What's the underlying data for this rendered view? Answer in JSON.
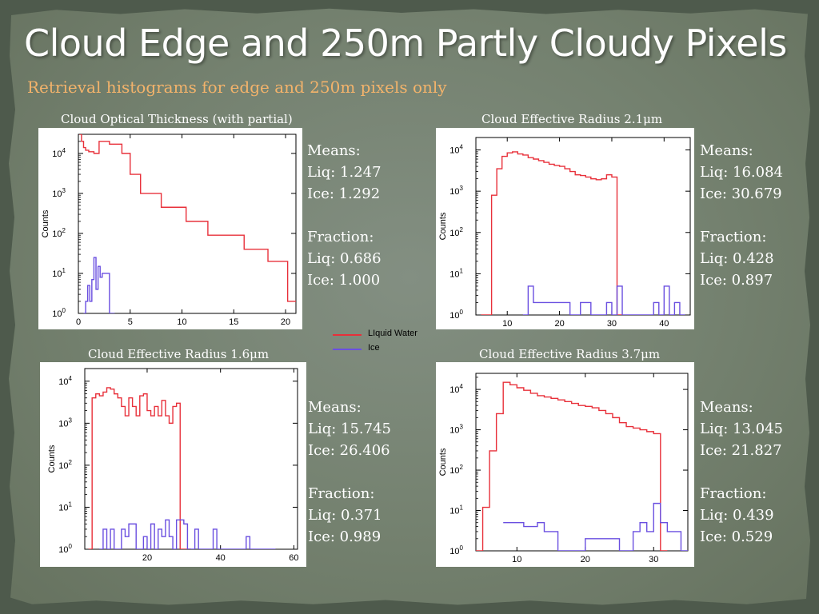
{
  "slide": {
    "title": "Cloud Edge and 250m Partly Cloudy Pixels",
    "subtitle": "Retrieval histograms for edge and 250m pixels only",
    "colors": {
      "liquid": "#e8303a",
      "ice": "#6a4fe0",
      "subtitle": "#f3b36b"
    }
  },
  "legend": {
    "liquid_label": "LIquid Water",
    "ice_label": "Ice"
  },
  "stats": {
    "means_label": "Means:",
    "fraction_label": "Fraction:",
    "cot": {
      "liq_mean": "Liq: 1.247",
      "ice_mean": "Ice: 1.292",
      "liq_frac": "Liq: 0.686",
      "ice_frac": "Ice: 1.000"
    },
    "r21": {
      "liq_mean": "Liq: 16.084",
      "ice_mean": "Ice: 30.679",
      "liq_frac": "Liq: 0.428",
      "ice_frac": "Ice: 0.897"
    },
    "r16": {
      "liq_mean": "Liq: 15.745",
      "ice_mean": "Ice: 26.406",
      "liq_frac": "Liq: 0.371",
      "ice_frac": "Ice: 0.989"
    },
    "r37": {
      "liq_mean": "Liq: 13.045",
      "ice_mean": "Ice: 21.827",
      "liq_frac": "Liq: 0.439",
      "ice_frac": "Ice: 0.529"
    }
  },
  "chart_data": [
    {
      "id": "cot",
      "type": "step-histogram",
      "title": "Cloud Optical Thickness (with partial)",
      "ylabel": "Counts",
      "xlim": [
        0,
        21
      ],
      "ylim": [
        1,
        30000
      ],
      "yscale": "log",
      "xticks": [
        0,
        5,
        10,
        15,
        20
      ],
      "yticks": [
        {
          "v": 1,
          "t": "10^0"
        },
        {
          "v": 10,
          "t": "10^1"
        },
        {
          "v": 100,
          "t": "10^2"
        },
        {
          "v": 1000,
          "t": "10^3"
        },
        {
          "v": 10000,
          "t": "10^4"
        }
      ],
      "series": [
        {
          "name": "LIquid Water",
          "color": "#e8303a",
          "x": [
            0.1,
            0.3,
            0.5,
            0.7,
            1.0,
            1.5,
            2.0,
            3.0,
            4.2,
            5.0,
            6.0,
            8.0,
            10.4,
            12.5,
            16.0,
            18.3,
            20.2,
            21.0
          ],
          "y": [
            30000,
            20000,
            14000,
            12000,
            11000,
            10000,
            20000,
            17000,
            10000,
            3000,
            1000,
            450,
            200,
            90,
            40,
            20,
            2,
            2
          ]
        },
        {
          "name": "Ice",
          "color": "#6a4fe0",
          "x": [
            0.5,
            0.7,
            0.9,
            1.1,
            1.3,
            1.5,
            1.7,
            1.9,
            2.1,
            2.3,
            2.5,
            3.0
          ],
          "y": [
            1,
            2,
            5,
            2,
            7,
            25,
            4,
            15,
            8,
            10,
            10,
            1
          ]
        }
      ]
    },
    {
      "id": "r21",
      "type": "step-histogram",
      "title": "Cloud Effective Radius 2.1μm",
      "ylabel": "Counts",
      "xlim": [
        4,
        45
      ],
      "ylim": [
        1,
        20000
      ],
      "yscale": "log",
      "xticks": [
        10,
        20,
        30,
        40
      ],
      "yticks": [
        {
          "v": 1,
          "t": "10^0"
        },
        {
          "v": 10,
          "t": "10^1"
        },
        {
          "v": 100,
          "t": "10^2"
        },
        {
          "v": 1000,
          "t": "10^3"
        },
        {
          "v": 10000,
          "t": "10^4"
        }
      ],
      "series": [
        {
          "name": "LIquid Water",
          "color": "#e8303a",
          "x": [
            5,
            6,
            7,
            8,
            9,
            10,
            11,
            12,
            13,
            14,
            15,
            16,
            17,
            18,
            19,
            20,
            21,
            22,
            23,
            24,
            25,
            26,
            27,
            28,
            29,
            30,
            31
          ],
          "y": [
            1,
            1,
            800,
            3500,
            7000,
            8500,
            9000,
            8000,
            7500,
            6500,
            6000,
            5500,
            5000,
            4500,
            4200,
            4000,
            3500,
            3000,
            2500,
            2400,
            2200,
            2000,
            1900,
            2000,
            2500,
            2200,
            1
          ]
        },
        {
          "name": "Ice",
          "color": "#6a4fe0",
          "x": [
            13,
            14,
            15,
            16,
            17,
            18,
            19,
            20,
            21,
            22,
            23,
            24,
            25,
            26,
            27,
            28,
            29,
            30,
            31,
            32,
            33,
            34,
            35,
            36,
            37,
            38,
            39,
            40,
            41,
            42,
            43
          ],
          "y": [
            1,
            5,
            2,
            2,
            2,
            2,
            2,
            2,
            2,
            1,
            1,
            2,
            2,
            1,
            1,
            1,
            2,
            1,
            5,
            1,
            1,
            1,
            1,
            1,
            1,
            2,
            1,
            5,
            1,
            2,
            1
          ]
        }
      ]
    },
    {
      "id": "r16",
      "type": "step-histogram",
      "title": "Cloud Effective Radius 1.6μm",
      "ylabel": "Counts",
      "xlim": [
        3,
        61
      ],
      "ylim": [
        1,
        20000
      ],
      "yscale": "log",
      "xticks": [
        20,
        40,
        60
      ],
      "yticks": [
        {
          "v": 1,
          "t": "10^0"
        },
        {
          "v": 10,
          "t": "10^1"
        },
        {
          "v": 100,
          "t": "10^2"
        },
        {
          "v": 1000,
          "t": "10^3"
        },
        {
          "v": 10000,
          "t": "10^4"
        }
      ],
      "series": [
        {
          "name": "LIquid Water",
          "color": "#e8303a",
          "x": [
            4,
            5,
            6,
            7,
            8,
            9,
            10,
            11,
            12,
            13,
            14,
            15,
            16,
            17,
            18,
            19,
            20,
            21,
            22,
            23,
            24,
            25,
            26,
            27,
            28,
            29,
            30,
            31
          ],
          "y": [
            1,
            4000,
            5000,
            4500,
            5500,
            7000,
            6500,
            5000,
            4000,
            2500,
            1500,
            4000,
            2500,
            1500,
            4500,
            5000,
            2000,
            1500,
            2500,
            1500,
            3500,
            1500,
            1000,
            2500,
            3000,
            1,
            1,
            1
          ]
        },
        {
          "name": "Ice",
          "color": "#6a4fe0",
          "x": [
            7,
            8,
            9,
            10,
            11,
            12,
            13,
            14,
            15,
            16,
            17,
            18,
            19,
            20,
            21,
            22,
            23,
            24,
            25,
            26,
            27,
            28,
            29,
            30,
            31,
            32,
            33,
            34,
            35,
            36,
            37,
            38,
            39,
            40,
            41,
            42,
            43,
            44,
            45,
            46,
            47,
            48,
            49,
            50,
            51,
            52,
            53,
            54
          ],
          "y": [
            1,
            3,
            1,
            3,
            1,
            1,
            3,
            2,
            4,
            4,
            1,
            1,
            2,
            1,
            4,
            1,
            3,
            2,
            5,
            2,
            1,
            5,
            5,
            4,
            1,
            1,
            3,
            1,
            1,
            1,
            1,
            3,
            1,
            1,
            1,
            1,
            1,
            1,
            1,
            1,
            2,
            1,
            1,
            1,
            1,
            1,
            1,
            1
          ]
        }
      ]
    },
    {
      "id": "r37",
      "type": "step-histogram",
      "title": "Cloud Effective Radius 3.7μm",
      "ylabel": "Counts",
      "xlim": [
        4,
        35
      ],
      "ylim": [
        1,
        25000
      ],
      "yscale": "log",
      "xticks": [
        10,
        20,
        30
      ],
      "yticks": [
        {
          "v": 1,
          "t": "10^0"
        },
        {
          "v": 10,
          "t": "10^1"
        },
        {
          "v": 100,
          "t": "10^2"
        },
        {
          "v": 1000,
          "t": "10^3"
        },
        {
          "v": 10000,
          "t": "10^4"
        }
      ],
      "series": [
        {
          "name": "LIquid Water",
          "color": "#e8303a",
          "x": [
            4,
            5,
            6,
            7,
            8,
            9,
            10,
            11,
            12,
            13,
            14,
            15,
            16,
            17,
            18,
            19,
            20,
            21,
            22,
            23,
            24,
            25,
            26,
            27,
            28,
            29,
            30,
            31
          ],
          "y": [
            1,
            12,
            300,
            2500,
            15000,
            13000,
            11000,
            9500,
            8000,
            7000,
            6500,
            6000,
            5500,
            5000,
            4500,
            4000,
            3800,
            3500,
            3000,
            2500,
            2000,
            1500,
            1200,
            1100,
            1000,
            900,
            800,
            1
          ]
        },
        {
          "name": "Ice",
          "color": "#6a4fe0",
          "x": [
            8,
            9,
            10,
            11,
            12,
            13,
            14,
            15,
            16,
            17,
            18,
            19,
            20,
            21,
            22,
            23,
            24,
            25,
            26,
            27,
            28,
            29,
            30,
            31,
            32,
            33,
            34
          ],
          "y": [
            5,
            5,
            5,
            4,
            4,
            5,
            3,
            3,
            1,
            1,
            1,
            1,
            2,
            2,
            2,
            2,
            2,
            1,
            1,
            3,
            5,
            3,
            15,
            5,
            3,
            3,
            1
          ]
        }
      ]
    }
  ]
}
